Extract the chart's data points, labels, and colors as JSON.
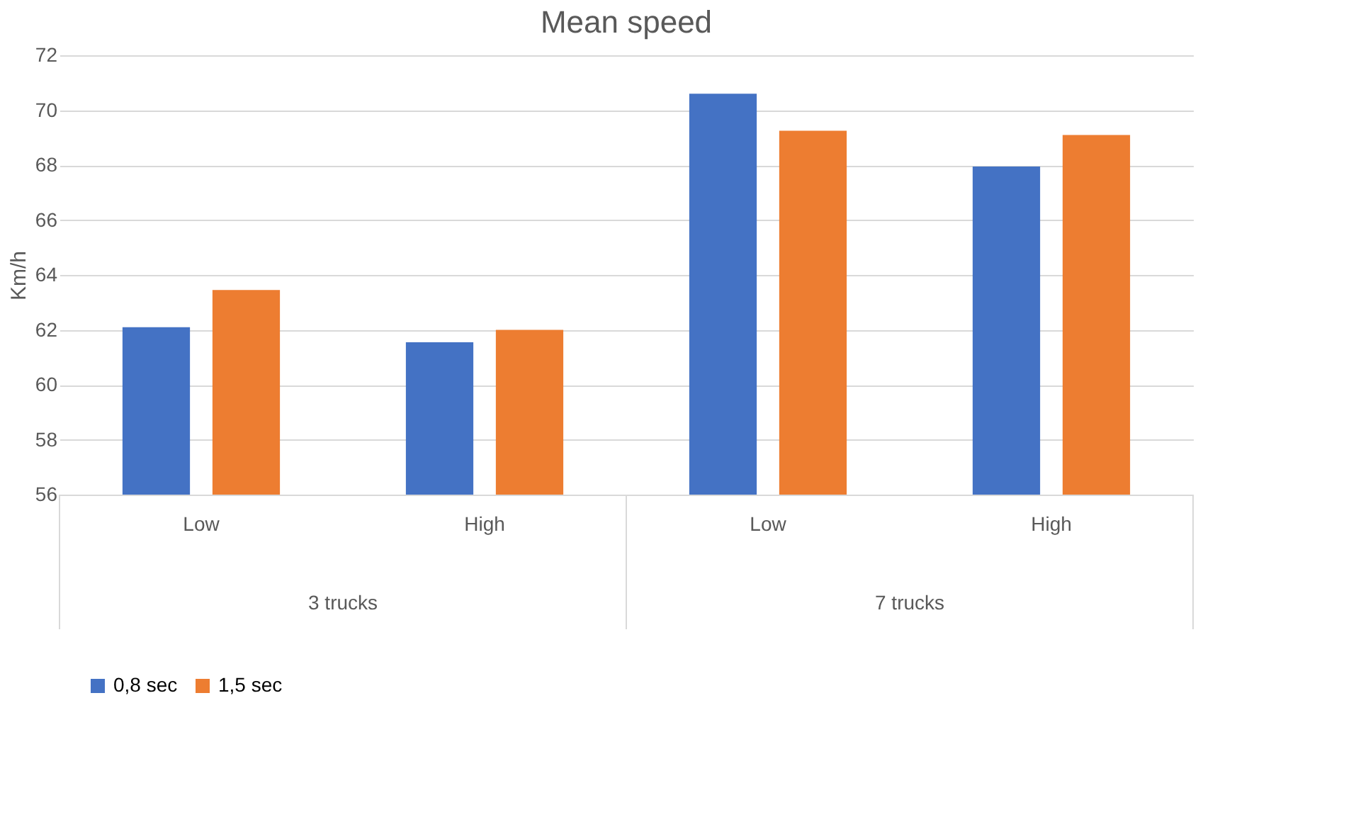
{
  "chart_data": {
    "type": "bar",
    "title": "Mean speed",
    "ylabel": "Km/h",
    "categories": [
      "Low",
      "High",
      "Low",
      "High"
    ],
    "annotations": [
      "3 trucks",
      "7 trucks"
    ],
    "series": [
      {
        "name": "0,8 sec",
        "color": "#4472c4",
        "values": [
          62.1,
          61.55,
          70.6,
          67.95
        ]
      },
      {
        "name": "1,5 sec",
        "color": "#ed7d31",
        "values": [
          63.45,
          62.0,
          69.25,
          69.1
        ]
      }
    ],
    "ylim": [
      56,
      72
    ],
    "yticks": [
      56,
      58,
      60,
      62,
      64,
      66,
      68,
      70,
      72
    ],
    "grid": "y",
    "legend": "bottom"
  }
}
